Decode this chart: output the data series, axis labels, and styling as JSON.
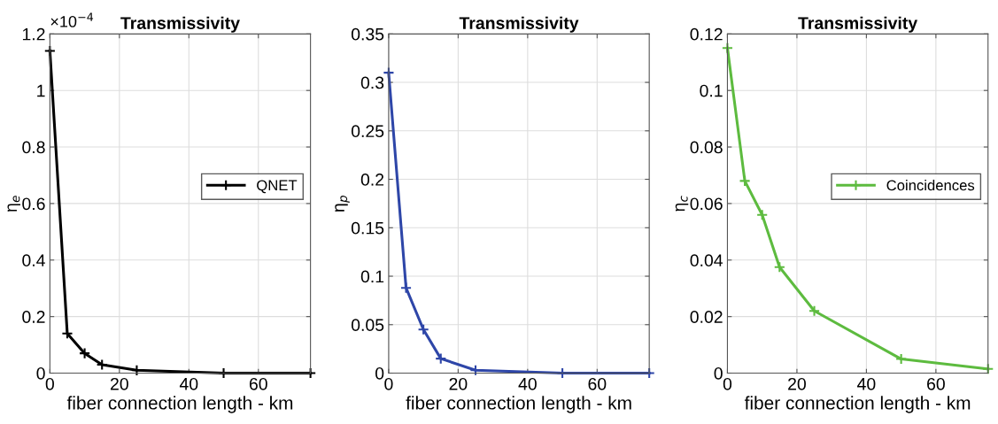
{
  "chart_data": [
    {
      "type": "line",
      "title": "Transmissivity",
      "xlabel": "fiber connection length - km",
      "ylabel": "η$_{e}$",
      "annotations": [
        "×10$^{−4}$"
      ],
      "x": [
        0,
        5,
        10,
        15,
        25,
        50,
        75
      ],
      "series": [
        {
          "name": "QNET",
          "color": "#000000",
          "values": [
            1.14,
            0.14,
            0.07,
            0.03,
            0.01,
            0,
            0
          ]
        }
      ],
      "xlim": [
        0,
        75
      ],
      "xticks": [
        0,
        20,
        40,
        60
      ],
      "ylim": [
        0,
        1.2
      ],
      "yticks": [
        0,
        0.2,
        0.4,
        0.6,
        0.8,
        1,
        1.2
      ],
      "grid": true,
      "legend": "right",
      "marker": "cross",
      "line_style": "solid"
    },
    {
      "type": "line",
      "title": "Transmissivity",
      "xlabel": "fiber connection length - km",
      "ylabel": "η$_{p}$",
      "x": [
        0,
        5,
        10,
        15,
        25,
        50,
        75
      ],
      "series": [
        {
          "color": "#2e46a8",
          "values": [
            0.31,
            0.088,
            0.045,
            0.015,
            0.003,
            0,
            0
          ]
        }
      ],
      "xlim": [
        0,
        75
      ],
      "xticks": [
        0,
        20,
        40,
        60
      ],
      "ylim": [
        0,
        0.35
      ],
      "yticks": [
        0,
        0.05,
        0.1,
        0.15,
        0.2,
        0.25,
        0.3,
        0.35
      ],
      "grid": true,
      "marker": "cross",
      "line_style": "solid"
    },
    {
      "type": "line",
      "title": "Transmissivity",
      "xlabel": "fiber connection length - km",
      "ylabel": "η$_{c}$",
      "x": [
        0,
        5,
        10,
        15,
        25,
        50,
        75
      ],
      "series": [
        {
          "name": "Coincidences",
          "color": "#5dbb3f",
          "values": [
            0.115,
            0.068,
            0.056,
            0.0375,
            0.022,
            0.005,
            0.0015
          ]
        }
      ],
      "xlim": [
        0,
        75
      ],
      "xticks": [
        0,
        20,
        40,
        60
      ],
      "ylim": [
        0,
        0.12
      ],
      "yticks": [
        0,
        0.02,
        0.04,
        0.06,
        0.08,
        0.1,
        0.12
      ],
      "grid": true,
      "legend": "right",
      "marker": "cross",
      "line_style": "solid"
    }
  ]
}
